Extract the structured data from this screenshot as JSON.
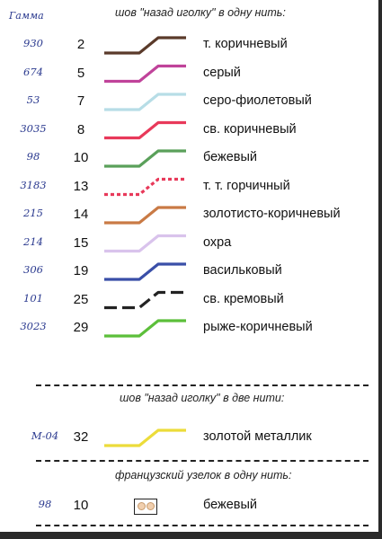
{
  "gamma_header": "Гамма",
  "section1_title": "шов \"назад иголку\" в одну нить:",
  "section2_title": "шов \"назад иголку\" в две нити:",
  "section3_title": "французский узелок в одну нить:",
  "rows": [
    {
      "code": "930",
      "num": "2",
      "name": "т. коричневый",
      "color": "#5a3a2a",
      "style": "solid"
    },
    {
      "code": "674",
      "num": "5",
      "name": "серый",
      "color": "#c0439a",
      "style": "solid"
    },
    {
      "code": "53",
      "num": "7",
      "name": "серо-фиолетовый",
      "color": "#b7dde6",
      "style": "solid"
    },
    {
      "code": "3035",
      "num": "8",
      "name": "св. коричневый",
      "color": "#e8395a",
      "style": "solid"
    },
    {
      "code": "98",
      "num": "10",
      "name": "бежевый",
      "color": "#5aa05a",
      "style": "solid"
    },
    {
      "code": "3183",
      "num": "13",
      "name": "т. т. горчичный",
      "color": "#e8395a",
      "style": "dotted"
    },
    {
      "code": "215",
      "num": "14",
      "name": "золотисто-коричневый",
      "color": "#c97a45",
      "style": "solid"
    },
    {
      "code": "214",
      "num": "15",
      "name": "охра",
      "color": "#d9c3ec",
      "style": "solid"
    },
    {
      "code": "306",
      "num": "19",
      "name": "васильковый",
      "color": "#3a4fa8",
      "style": "solid"
    },
    {
      "code": "101",
      "num": "25",
      "name": "св. кремовый",
      "color": "#222222",
      "style": "dashed"
    },
    {
      "code": "3023",
      "num": "29",
      "name": "рыже-коричневый",
      "color": "#5cbf3a",
      "style": "solid"
    }
  ],
  "row2": {
    "code": "М-04",
    "num": "32",
    "name": "золотой металлик",
    "color": "#ecdc3a",
    "style": "solid"
  },
  "row3": {
    "code": "98",
    "num": "10",
    "name": "бежевый",
    "knot_color": "#f1cfae"
  }
}
